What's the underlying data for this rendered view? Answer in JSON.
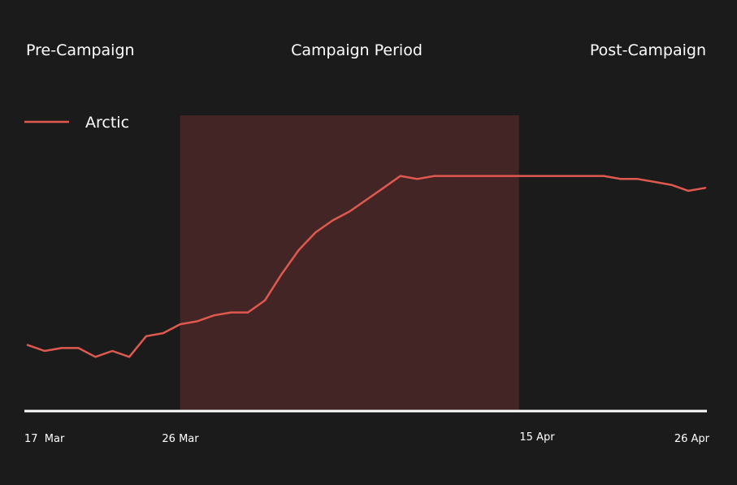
{
  "chart_data": {
    "type": "line",
    "periods": [
      "Pre-Campaign",
      "Campaign Period",
      "Post-Campaign"
    ],
    "x_ticks": [
      "17  Mar",
      "26 Mar",
      "15 Apr",
      "26 Apr"
    ],
    "x_range": [
      "2024-03-17",
      "2024-04-26"
    ],
    "highlight_range": [
      "2024-03-26",
      "2024-04-15"
    ],
    "y_range": [
      0,
      100
    ],
    "legend_position": "top-left",
    "grid": false,
    "colors": {
      "background": "#1b1b1b",
      "line": "#e0594f",
      "highlight": "#432525",
      "axis": "#ffffff",
      "text": "#ffffff"
    },
    "series": [
      {
        "name": "Arctic",
        "x": [
          "2024-03-17",
          "2024-03-18",
          "2024-03-19",
          "2024-03-20",
          "2024-03-21",
          "2024-03-22",
          "2024-03-23",
          "2024-03-24",
          "2024-03-25",
          "2024-03-26",
          "2024-03-27",
          "2024-03-28",
          "2024-03-29",
          "2024-03-30",
          "2024-03-31",
          "2024-04-01",
          "2024-04-02",
          "2024-04-03",
          "2024-04-04",
          "2024-04-05",
          "2024-04-06",
          "2024-04-07",
          "2024-04-08",
          "2024-04-09",
          "2024-04-10",
          "2024-04-11",
          "2024-04-12",
          "2024-04-13",
          "2024-04-14",
          "2024-04-15",
          "2024-04-16",
          "2024-04-17",
          "2024-04-18",
          "2024-04-19",
          "2024-04-20",
          "2024-04-21",
          "2024-04-22",
          "2024-04-23",
          "2024-04-24",
          "2024-04-25",
          "2024-04-26"
        ],
        "values": [
          22,
          20,
          21,
          21,
          18,
          20,
          18,
          25,
          26,
          29,
          30,
          32,
          33,
          33,
          37,
          46,
          54,
          60,
          64,
          67,
          71,
          75,
          79,
          78,
          79,
          79,
          79,
          79,
          79,
          79,
          79,
          79,
          79,
          79,
          79,
          78,
          78,
          77,
          76,
          74,
          75
        ]
      }
    ]
  }
}
